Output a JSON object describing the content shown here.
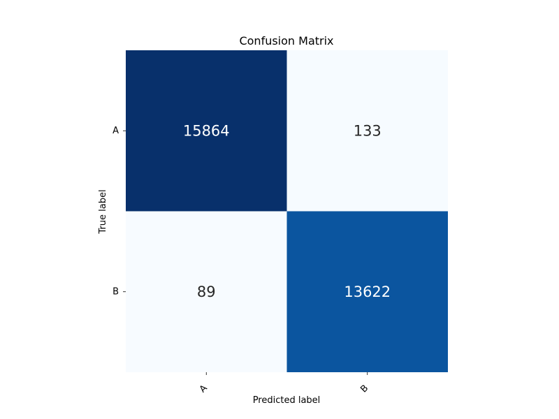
{
  "chart_data": {
    "type": "heatmap",
    "title": "Confusion Matrix",
    "xlabel": "Predicted label",
    "ylabel": "True label",
    "x_categories": [
      "A",
      "B"
    ],
    "y_categories": [
      "A",
      "B"
    ],
    "values": [
      [
        15864,
        133
      ],
      [
        89,
        13622
      ]
    ],
    "colormap": "Blues",
    "colors": {
      "low": "#f7fbff",
      "high": "#08306b",
      "text_dark": "#262626",
      "text_light": "#ffffff"
    },
    "grid": false,
    "colorbar": false,
    "x_tick_rotation_deg": 45
  }
}
